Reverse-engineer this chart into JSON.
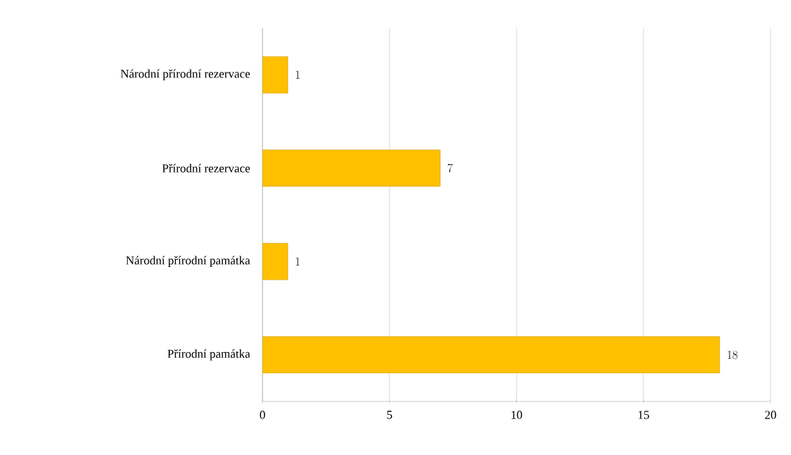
{
  "chart_data": {
    "type": "bar",
    "orientation": "horizontal",
    "categories": [
      "Národní přírodní rezervace",
      "Přírodní rezervace",
      "Národní přírodní památka",
      "Přírodní památka"
    ],
    "values": [
      1,
      7,
      1,
      18
    ],
    "color": "#ffc000",
    "xlim": [
      0,
      20
    ],
    "xticks": [
      0,
      5,
      10,
      15,
      20
    ],
    "grid": "x",
    "data_labels": true
  }
}
